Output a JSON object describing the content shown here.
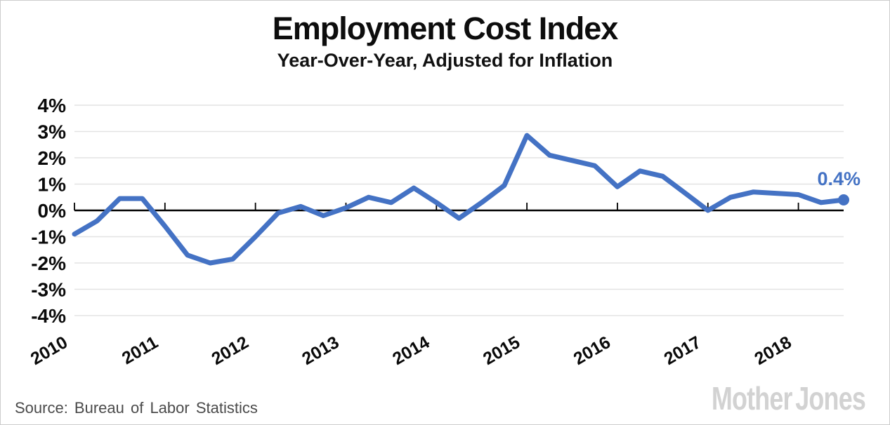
{
  "header": {
    "title": "Employment Cost Index",
    "subtitle": "Year-Over-Year, Adjusted for Inflation"
  },
  "footer": {
    "source": "Source: Bureau of Labor Statistics",
    "logo": "Mother Jones"
  },
  "colors": {
    "line": "#4472c4",
    "endpoint": "#4472c4",
    "gridline": "#e3e3e3",
    "axis": "#000000",
    "tick_label": "#0a0a0a",
    "source_text": "#4a4a4a",
    "logo": "#d2d2d2",
    "background": "#ffffff",
    "border": "#cccccc"
  },
  "chart_data": {
    "type": "line",
    "title": "Employment Cost Index",
    "subtitle": "Year-Over-Year, Adjusted for Inflation",
    "unit": "percent",
    "grid": "horizontal-only",
    "legend": "none",
    "ylim": [
      -4,
      4
    ],
    "y_ticks": [
      {
        "label": "4%",
        "value": 4
      },
      {
        "label": "3%",
        "value": 3
      },
      {
        "label": "2%",
        "value": 2
      },
      {
        "label": "1%",
        "value": 1
      },
      {
        "label": "0%",
        "value": 0
      },
      {
        "label": "-1%",
        "value": -1
      },
      {
        "label": "-2%",
        "value": -2
      },
      {
        "label": "-3%",
        "value": -3
      },
      {
        "label": "-4%",
        "value": -4
      }
    ],
    "x_ticks": [
      {
        "label": "2010",
        "index": 0
      },
      {
        "label": "2011",
        "index": 4
      },
      {
        "label": "2012",
        "index": 8
      },
      {
        "label": "2013",
        "index": 12
      },
      {
        "label": "2014",
        "index": 16
      },
      {
        "label": "2015",
        "index": 20
      },
      {
        "label": "2016",
        "index": 24
      },
      {
        "label": "2017",
        "index": 28
      },
      {
        "label": "2018",
        "index": 32
      }
    ],
    "series": [
      {
        "name": "Employment Cost Index, year-over-year, inflation-adjusted",
        "frequency": "quarterly",
        "x": [
          "2010Q1",
          "2010Q2",
          "2010Q3",
          "2010Q4",
          "2011Q1",
          "2011Q2",
          "2011Q3",
          "2011Q4",
          "2012Q1",
          "2012Q2",
          "2012Q3",
          "2012Q4",
          "2013Q1",
          "2013Q2",
          "2013Q3",
          "2013Q4",
          "2014Q1",
          "2014Q2",
          "2014Q3",
          "2014Q4",
          "2015Q1",
          "2015Q2",
          "2015Q3",
          "2015Q4",
          "2016Q1",
          "2016Q2",
          "2016Q3",
          "2016Q4",
          "2017Q1",
          "2017Q2",
          "2017Q3",
          "2017Q4",
          "2018Q1",
          "2018Q2",
          "2018Q3"
        ],
        "values": [
          -0.9,
          -0.4,
          0.45,
          0.45,
          -0.6,
          -1.7,
          -2.0,
          -1.85,
          -1.0,
          -0.1,
          0.15,
          -0.2,
          0.1,
          0.5,
          0.3,
          0.85,
          0.3,
          -0.3,
          0.3,
          0.95,
          2.85,
          2.1,
          1.9,
          1.7,
          0.9,
          1.5,
          1.3,
          0.65,
          0.0,
          0.5,
          0.7,
          0.65,
          0.6,
          0.3,
          0.4
        ]
      }
    ],
    "end_point": {
      "label": "0.4%",
      "value": 0.4
    }
  }
}
